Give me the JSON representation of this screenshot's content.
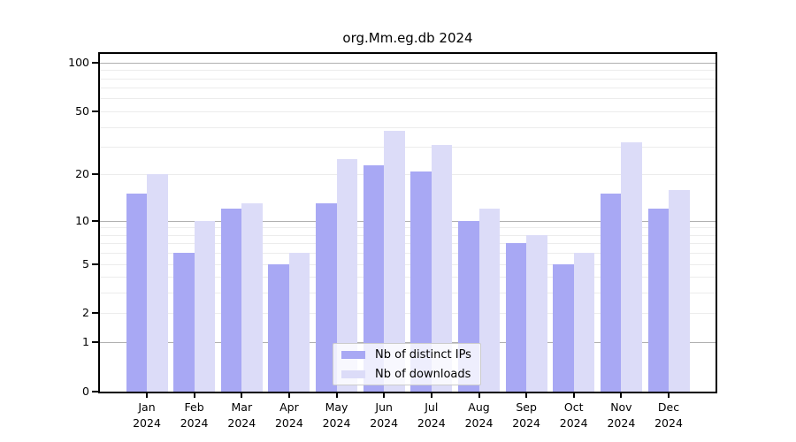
{
  "chart_data": {
    "type": "bar",
    "title": "org.Mm.eg.db 2024",
    "year_label": "2024",
    "categories": [
      "Jan",
      "Feb",
      "Mar",
      "Apr",
      "May",
      "Jun",
      "Jul",
      "Aug",
      "Sep",
      "Oct",
      "Nov",
      "Dec"
    ],
    "series": [
      {
        "name": "Nb of distinct IPs",
        "color": "#a8a8f4",
        "values": [
          15,
          6,
          12,
          5,
          13,
          23,
          21,
          10,
          7,
          5,
          15,
          12
        ]
      },
      {
        "name": "Nb of downloads",
        "color": "#dcdcf8",
        "values": [
          20,
          10,
          13,
          6,
          25,
          38,
          31,
          12,
          8,
          6,
          32,
          16
        ]
      }
    ],
    "xlabel": "",
    "ylabel": "",
    "yscale": "log1p",
    "ylim": [
      0,
      113
    ],
    "y_ticks": [
      0,
      1,
      2,
      5,
      10,
      20,
      50,
      100
    ],
    "grid_major": [
      1,
      10,
      100
    ],
    "grid_minor": [
      2,
      3,
      4,
      5,
      6,
      7,
      8,
      9,
      20,
      30,
      40,
      50,
      60,
      70,
      80,
      90
    ],
    "grid": "on",
    "legend_position": "lower center",
    "colors": {
      "major_grid": "#b0b0b0",
      "minor_grid": "#ececec",
      "spine": "#000000",
      "text": "#000000",
      "legend_border": "#cccccc",
      "background": "#ffffff"
    }
  }
}
